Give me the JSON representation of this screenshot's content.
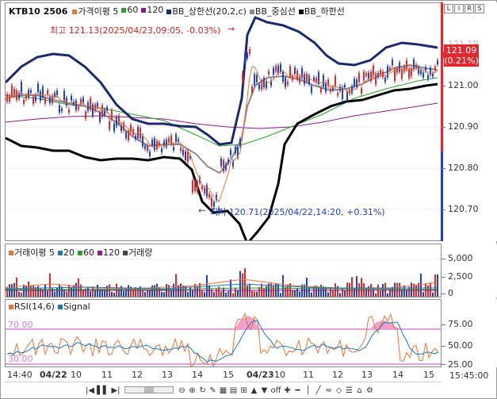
{
  "header": {
    "symbol": "KTB10",
    "code": "2506",
    "indicators": [
      {
        "label": "가격이평 5",
        "color": "#e8743b"
      },
      {
        "label": "60",
        "color": "#2ca02c"
      },
      {
        "label": "120",
        "color": "#8b1a8b"
      },
      {
        "label": "BB_상한선(20,2,c)",
        "color": "#1a2a6c"
      },
      {
        "label": "BB_중심선",
        "color": "#8a8a8a"
      },
      {
        "label": "BB_하한선",
        "color": "#000000"
      }
    ]
  },
  "price_panel": {
    "annotation_high": "최고 121.13(2025/04/23,09:05, -0.03%)",
    "annotation_low": "최저 120.71(2025/04/22,14:20, +0.31%)",
    "current_price": "121.09",
    "current_change": "(0.21%)",
    "y_labels": [
      "121.00",
      "120.90",
      "120.80",
      "120.70"
    ],
    "y_top_partial": "121.19",
    "colors": {
      "up": "#e0282e",
      "down": "#1f3fc4",
      "bb_upper": "#1a2a6c",
      "bb_mid": "#8a8a8a",
      "bb_lower": "#000000"
    }
  },
  "volume_panel": {
    "legend": [
      {
        "label": "거래이평 5",
        "color": "#e8743b"
      },
      {
        "label": "20",
        "color": "#1f77b4"
      },
      {
        "label": "60",
        "color": "#2ca02c"
      },
      {
        "label": "120",
        "color": "#8b1a8b"
      },
      {
        "label": "거래량",
        "color": "#444444"
      }
    ],
    "y_labels": [
      "5,000",
      "2,500",
      "0"
    ]
  },
  "rsi_panel": {
    "legend": [
      {
        "label": "RSI(14,6)",
        "color": "#e8743b"
      },
      {
        "label": "Signal",
        "color": "#1f77b4"
      }
    ],
    "level_70": "70.00",
    "level_30": "30.00",
    "y_labels": [
      "75.00",
      "50.00",
      "25.00"
    ]
  },
  "time_axis": {
    "labels": [
      "14:40",
      "04/22",
      "10",
      "11",
      "12",
      "13",
      "14",
      "15",
      "04/23",
      "10",
      "11",
      "12",
      "13",
      "14",
      "15"
    ],
    "current_time": "15:45:00"
  },
  "toolbar": {
    "buttons": [
      "|◀",
      "▌▌",
      "▶|",
      "⊖",
      "⊕",
      "↻",
      "✎",
      "▦",
      "▤",
      "⊞",
      "▲",
      "▼",
      "off",
      "✚",
      "━",
      "│",
      "╱",
      "≈",
      "◇",
      "☰",
      "⌂",
      "⚙"
    ]
  },
  "corner_buttons": [
    "L",
    "I",
    "R",
    "S"
  ]
}
